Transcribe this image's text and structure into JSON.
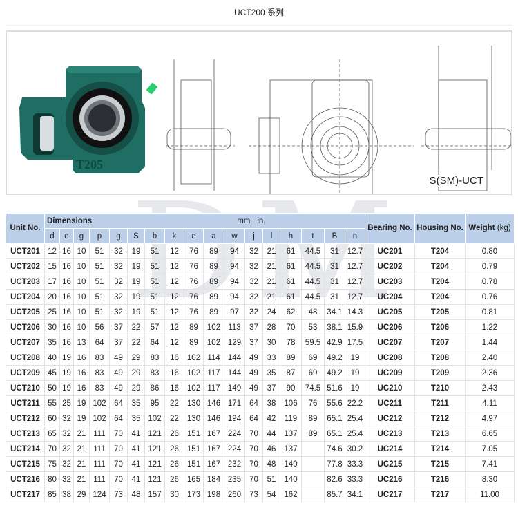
{
  "title": "UCT200 系列",
  "figure": {
    "caption": "S(SM)-UCT",
    "housing_marking": "T205",
    "housing_color": "#1f6e63"
  },
  "watermark": "DM",
  "table": {
    "headers": {
      "unit_no": "Unit No.",
      "dimensions": "Dimensions",
      "mm": "mm",
      "in": "in.",
      "bearing_no": "Bearing No.",
      "housing_no": "Housing No.",
      "weight": "Weight",
      "weight_unit": "(kg)",
      "dims": [
        "d",
        "o",
        "g",
        "p",
        "g",
        "S",
        "b",
        "k",
        "e",
        "a",
        "w",
        "j",
        "l",
        "h",
        "t",
        "B",
        "n"
      ]
    },
    "rows": [
      {
        "unit": "UCT201",
        "dims": [
          "12",
          "16",
          "10",
          "51",
          "32",
          "19",
          "51",
          "12",
          "76",
          "89",
          "94",
          "32",
          "21",
          "61",
          "44.5",
          "31",
          "12.7"
        ],
        "bearing": "UC201",
        "housing": "T204",
        "weight": "0.80"
      },
      {
        "unit": "UCT202",
        "dims": [
          "15",
          "16",
          "10",
          "51",
          "32",
          "19",
          "51",
          "12",
          "76",
          "89",
          "94",
          "32",
          "21",
          "61",
          "44.5",
          "31",
          "12.7"
        ],
        "bearing": "UC202",
        "housing": "T204",
        "weight": "0.79"
      },
      {
        "unit": "UCT203",
        "dims": [
          "17",
          "16",
          "10",
          "51",
          "32",
          "19",
          "51",
          "12",
          "76",
          "89",
          "94",
          "32",
          "21",
          "61",
          "44.5",
          "31",
          "12.7"
        ],
        "bearing": "UC203",
        "housing": "T204",
        "weight": "0.78"
      },
      {
        "unit": "UCT204",
        "dims": [
          "20",
          "16",
          "10",
          "51",
          "32",
          "19",
          "51",
          "12",
          "76",
          "89",
          "94",
          "32",
          "21",
          "61",
          "44.5",
          "31",
          "12.7"
        ],
        "bearing": "UC204",
        "housing": "T204",
        "weight": "0.76"
      },
      {
        "unit": "UCT205",
        "dims": [
          "25",
          "16",
          "10",
          "51",
          "32",
          "19",
          "51",
          "12",
          "76",
          "89",
          "97",
          "32",
          "24",
          "62",
          "48",
          "34.1",
          "14.3"
        ],
        "bearing": "UC205",
        "housing": "T205",
        "weight": "0.81"
      },
      {
        "unit": "UCT206",
        "dims": [
          "30",
          "16",
          "10",
          "56",
          "37",
          "22",
          "57",
          "12",
          "89",
          "102",
          "113",
          "37",
          "28",
          "70",
          "53",
          "38.1",
          "15.9"
        ],
        "bearing": "UC206",
        "housing": "T206",
        "weight": "1.22"
      },
      {
        "unit": "UCT207",
        "dims": [
          "35",
          "16",
          "13",
          "64",
          "37",
          "22",
          "64",
          "12",
          "89",
          "102",
          "129",
          "37",
          "30",
          "78",
          "59.5",
          "42.9",
          "17.5"
        ],
        "bearing": "UC207",
        "housing": "T207",
        "weight": "1.44"
      },
      {
        "unit": "UCT208",
        "dims": [
          "40",
          "19",
          "16",
          "83",
          "49",
          "29",
          "83",
          "16",
          "102",
          "114",
          "144",
          "49",
          "33",
          "89",
          "69",
          "49.2",
          "19"
        ],
        "bearing": "UC208",
        "housing": "T208",
        "weight": "2.40"
      },
      {
        "unit": "UCT209",
        "dims": [
          "45",
          "19",
          "16",
          "83",
          "49",
          "29",
          "83",
          "16",
          "102",
          "117",
          "144",
          "49",
          "35",
          "87",
          "69",
          "49.2",
          "19"
        ],
        "bearing": "UC209",
        "housing": "T209",
        "weight": "2.36"
      },
      {
        "unit": "UCT210",
        "dims": [
          "50",
          "19",
          "16",
          "83",
          "49",
          "29",
          "86",
          "16",
          "102",
          "117",
          "149",
          "49",
          "37",
          "90",
          "74.5",
          "51.6",
          "19"
        ],
        "bearing": "UC210",
        "housing": "T210",
        "weight": "2.43"
      },
      {
        "unit": "UCT211",
        "dims": [
          "55",
          "25",
          "19",
          "102",
          "64",
          "35",
          "95",
          "22",
          "130",
          "146",
          "171",
          "64",
          "38",
          "106",
          "76",
          "55.6",
          "22.2"
        ],
        "bearing": "UC211",
        "housing": "T211",
        "weight": "4.11"
      },
      {
        "unit": "UCT212",
        "dims": [
          "60",
          "32",
          "19",
          "102",
          "64",
          "35",
          "102",
          "22",
          "130",
          "146",
          "194",
          "64",
          "42",
          "119",
          "89",
          "65.1",
          "25.4"
        ],
        "bearing": "UC212",
        "housing": "T212",
        "weight": "4.97"
      },
      {
        "unit": "UCT213",
        "dims": [
          "65",
          "32",
          "21",
          "111",
          "70",
          "41",
          "121",
          "26",
          "151",
          "167",
          "224",
          "70",
          "44",
          "137",
          "89",
          "65.1",
          "25.4"
        ],
        "bearing": "UC213",
        "housing": "T213",
        "weight": "6.65"
      },
      {
        "unit": "UCT214",
        "dims": [
          "70",
          "32",
          "21",
          "111",
          "70",
          "41",
          "121",
          "26",
          "151",
          "167",
          "224",
          "70",
          "46",
          "137",
          "",
          "74.6",
          "30.2"
        ],
        "bearing": "UC214",
        "housing": "T214",
        "weight": "7.05"
      },
      {
        "unit": "UCT215",
        "dims": [
          "75",
          "32",
          "21",
          "111",
          "70",
          "41",
          "121",
          "26",
          "151",
          "167",
          "232",
          "70",
          "48",
          "140",
          "",
          "77.8",
          "33.3"
        ],
        "bearing": "UC215",
        "housing": "T215",
        "weight": "7.41"
      },
      {
        "unit": "UCT216",
        "dims": [
          "80",
          "32",
          "21",
          "111",
          "70",
          "41",
          "121",
          "26",
          "165",
          "184",
          "235",
          "70",
          "51",
          "140",
          "",
          "82.6",
          "33.3"
        ],
        "bearing": "UC216",
        "housing": "T216",
        "weight": "8.30"
      },
      {
        "unit": "UCT217",
        "dims": [
          "85",
          "38",
          "29",
          "124",
          "73",
          "48",
          "157",
          "30",
          "173",
          "198",
          "260",
          "73",
          "54",
          "162",
          "",
          "85.7",
          "34.1"
        ],
        "bearing": "UC217",
        "housing": "T217",
        "weight": "11.00"
      }
    ]
  }
}
